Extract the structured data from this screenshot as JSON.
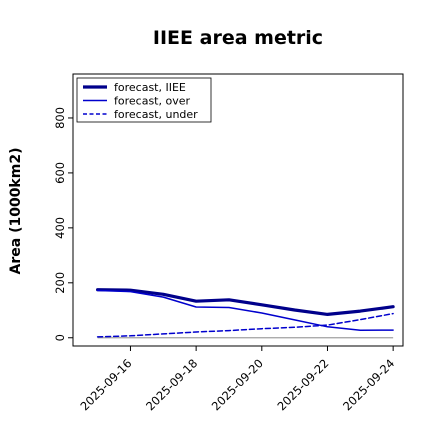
{
  "chart_data": {
    "type": "line",
    "title": "IIEE area metric",
    "xlabel": "",
    "ylabel": "Area (1000km2)",
    "x_dates": [
      "2025-09-15",
      "2025-09-16",
      "2025-09-17",
      "2025-09-18",
      "2025-09-19",
      "2025-09-20",
      "2025-09-21",
      "2025-09-22",
      "2025-09-23",
      "2025-09-24"
    ],
    "x_tick_labels": [
      "2025-09-16",
      "2025-09-18",
      "2025-09-20",
      "2025-09-22",
      "2025-09-24"
    ],
    "x_tick_colors": [
      "#228b22",
      "#000000",
      "#000000",
      "#000000",
      "#000000"
    ],
    "ylim": [
      -30,
      960
    ],
    "y_ticks": [
      0,
      200,
      400,
      600,
      800
    ],
    "grid": false,
    "legend_position": "top-left",
    "series": [
      {
        "name": "forecast, IIEE",
        "color": "#00008b",
        "style": "solid-thick",
        "values": [
          175,
          173,
          158,
          133,
          138,
          120,
          101,
          85,
          97,
          113
        ]
      },
      {
        "name": "forecast, over",
        "color": "#0000cd",
        "style": "solid",
        "values": [
          172,
          168,
          148,
          112,
          110,
          90,
          65,
          40,
          27,
          28
        ]
      },
      {
        "name": "forecast, under",
        "color": "#0000cd",
        "style": "dashed",
        "values": [
          3,
          7,
          14,
          21,
          26,
          33,
          38,
          46,
          66,
          88
        ]
      }
    ],
    "reference_line": {
      "value": 0,
      "color": "#a0a0a0"
    }
  }
}
